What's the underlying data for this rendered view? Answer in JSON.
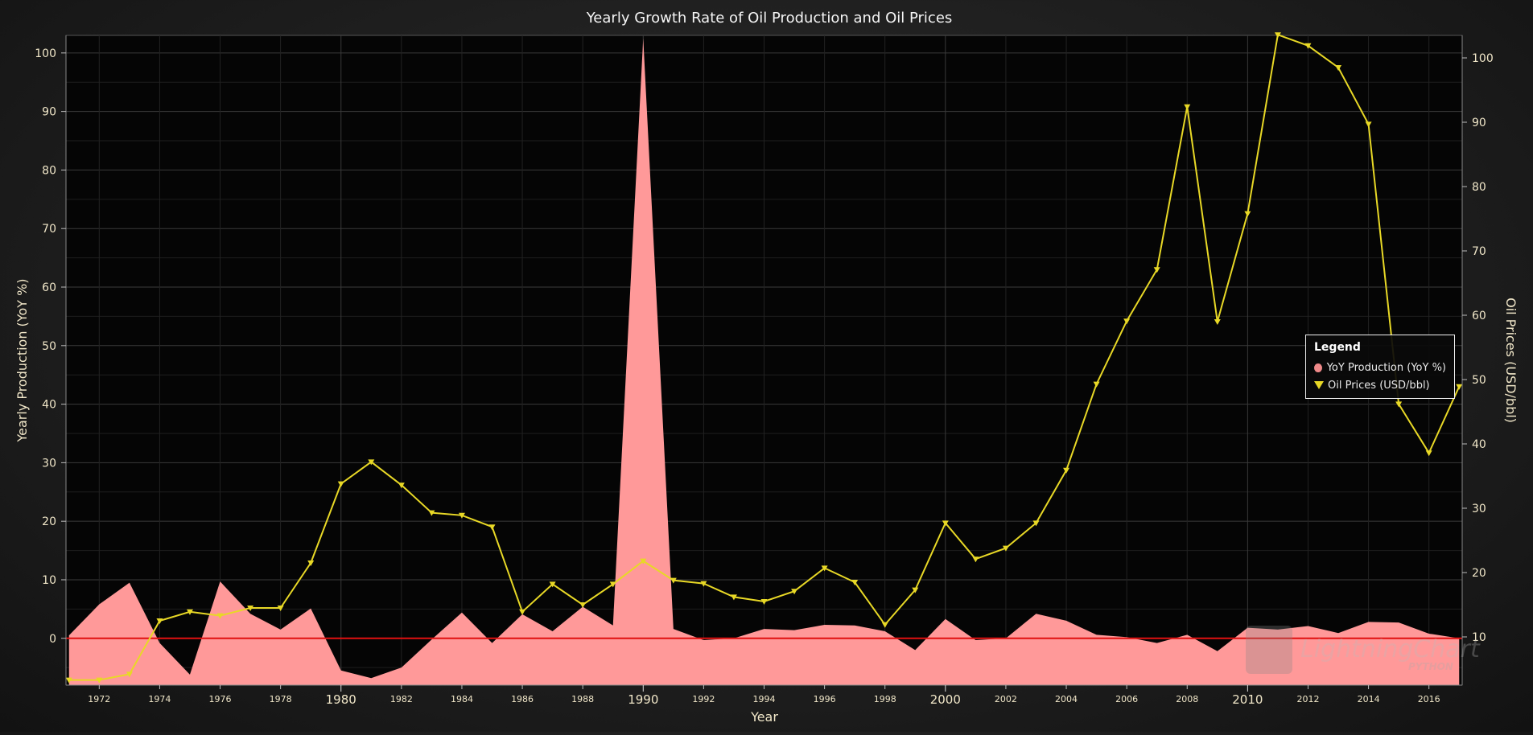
{
  "chart_data": {
    "type": "line",
    "title": "Yearly Growth Rate of Oil Production and Oil Prices",
    "xlabel": "Year",
    "ylabel_left": "Yearly Production (YoY %)",
    "ylabel_right": "Oil Prices (USD/bbl)",
    "xlim": [
      1970.9,
      2017.1
    ],
    "ylim_left": [
      -8,
      103
    ],
    "ylim_right": [
      2.5,
      103.5
    ],
    "yticks_left": [
      0,
      10,
      20,
      30,
      40,
      50,
      60,
      70,
      80,
      90,
      100
    ],
    "yticks_right": [
      10,
      20,
      30,
      40,
      50,
      60,
      70,
      80,
      90,
      100
    ],
    "xticks_major": [
      1980,
      1990,
      2000,
      2010
    ],
    "xticks_minor": [
      1972,
      1974,
      1976,
      1978,
      1982,
      1984,
      1986,
      1988,
      1992,
      1994,
      1996,
      1998,
      2002,
      2004,
      2006,
      2008,
      2012,
      2014,
      2016
    ],
    "grid": true,
    "zero_line_color": "#e01010",
    "legend_position": "right",
    "x": [
      1971,
      1972,
      1973,
      1974,
      1975,
      1976,
      1977,
      1978,
      1979,
      1980,
      1981,
      1982,
      1983,
      1984,
      1985,
      1986,
      1987,
      1988,
      1989,
      1990,
      1991,
      1992,
      1993,
      1994,
      1995,
      1996,
      1997,
      1998,
      1999,
      2000,
      2001,
      2002,
      2003,
      2004,
      2005,
      2006,
      2007,
      2008,
      2009,
      2010,
      2011,
      2012,
      2013,
      2014,
      2015,
      2016,
      2017
    ],
    "series": [
      {
        "name": "YoY Production (YoY %)",
        "kind": "area",
        "axis": "left",
        "color": "#ff9999",
        "values": [
          0.5,
          5.8,
          9.5,
          -0.8,
          -6.2,
          9.7,
          4.2,
          1.5,
          5.1,
          -5.5,
          -6.8,
          -5,
          -0.2,
          4.4,
          -0.8,
          4.1,
          1.2,
          5.4,
          2.2,
          102.5,
          1.6,
          -0.3,
          0,
          1.6,
          1.4,
          2.3,
          2.2,
          1.2,
          -2,
          3.3,
          -0.3,
          0,
          4.2,
          3,
          0.6,
          0.2,
          -0.8,
          0.6,
          -2.2,
          1.8,
          1.5,
          2.1,
          0.9,
          2.8,
          2.7,
          0.8,
          0
        ]
      },
      {
        "name": "Oil Prices (USD/bbl)",
        "kind": "line",
        "axis": "right",
        "color": "#e8d826",
        "values": [
          3.3,
          3.3,
          4.2,
          12.5,
          13.9,
          13.3,
          14.5,
          14.5,
          21.5,
          33.8,
          37.2,
          33.6,
          29.3,
          28.9,
          27.1,
          13.9,
          18.2,
          15,
          18.2,
          21.8,
          18.8,
          18.3,
          16.2,
          15.5,
          17.1,
          20.7,
          18.5,
          11.9,
          17.3,
          27.7,
          22.1,
          23.8,
          27.7,
          35.9,
          49.3,
          59.1,
          67.1,
          92.4,
          59,
          75.8,
          103.6,
          101.9,
          98.5,
          89.7,
          46.2,
          38.6,
          48.9
        ]
      }
    ]
  },
  "legend": {
    "title": "Legend",
    "items": [
      "YoY Production (YoY %)",
      "Oil Prices (USD/bbl)"
    ]
  },
  "watermark": {
    "brand": "LightningChart",
    "sub": "PYTHON"
  }
}
